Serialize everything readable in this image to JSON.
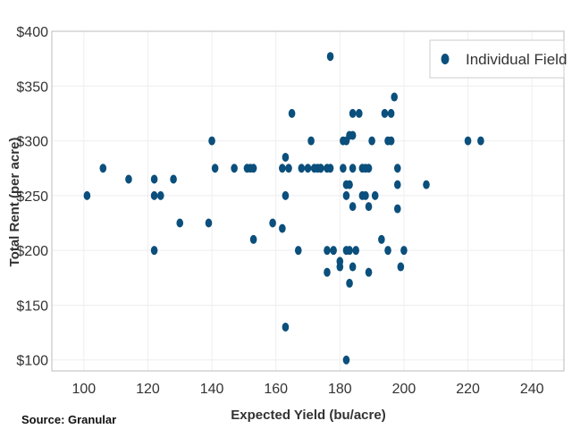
{
  "chart_data": {
    "type": "scatter",
    "title": "",
    "xlabel": "Expected Yield (bu/acre)",
    "ylabel": "Total Rent (per acre)",
    "xlim": [
      90,
      250
    ],
    "ylim": [
      90,
      400
    ],
    "x_ticks": [
      100,
      120,
      140,
      160,
      180,
      200,
      220,
      240
    ],
    "y_ticks": [
      100,
      150,
      200,
      250,
      300,
      350,
      400
    ],
    "y_tick_labels": [
      "$100",
      "$150",
      "$200",
      "$250",
      "$300",
      "$350",
      "$400"
    ],
    "x_tick_labels": [
      "100",
      "120",
      "140",
      "160",
      "180",
      "200",
      "220",
      "240"
    ],
    "grid": true,
    "legend_position": "top-right",
    "marker_color": "#0b4f7c",
    "series": [
      {
        "name": "Individual Field",
        "points": [
          [
            101,
            250
          ],
          [
            106,
            275
          ],
          [
            114,
            265
          ],
          [
            122,
            265
          ],
          [
            122,
            250
          ],
          [
            122,
            200
          ],
          [
            124,
            250
          ],
          [
            128,
            265
          ],
          [
            130,
            225
          ],
          [
            139,
            225
          ],
          [
            140,
            300
          ],
          [
            141,
            275
          ],
          [
            147,
            275
          ],
          [
            151,
            275
          ],
          [
            152,
            275
          ],
          [
            153,
            275
          ],
          [
            153,
            210
          ],
          [
            159,
            225
          ],
          [
            162,
            220
          ],
          [
            162,
            275
          ],
          [
            163,
            285
          ],
          [
            163,
            250
          ],
          [
            163,
            130
          ],
          [
            164,
            275
          ],
          [
            165,
            325
          ],
          [
            167,
            200
          ],
          [
            168,
            275
          ],
          [
            170,
            275
          ],
          [
            171,
            300
          ],
          [
            172,
            275
          ],
          [
            173,
            275
          ],
          [
            174,
            275
          ],
          [
            174,
            275
          ],
          [
            176,
            200
          ],
          [
            176,
            180
          ],
          [
            176,
            275
          ],
          [
            177,
            377
          ],
          [
            177,
            275
          ],
          [
            178,
            200
          ],
          [
            180,
            190
          ],
          [
            180,
            185
          ],
          [
            181,
            300
          ],
          [
            181,
            275
          ],
          [
            182,
            300
          ],
          [
            182,
            260
          ],
          [
            182,
            250
          ],
          [
            182,
            200
          ],
          [
            182,
            100
          ],
          [
            183,
            305
          ],
          [
            183,
            260
          ],
          [
            183,
            200
          ],
          [
            183,
            170
          ],
          [
            184,
            325
          ],
          [
            184,
            305
          ],
          [
            184,
            275
          ],
          [
            184,
            240
          ],
          [
            184,
            185
          ],
          [
            185,
            200
          ],
          [
            186,
            325
          ],
          [
            187,
            275
          ],
          [
            187,
            250
          ],
          [
            188,
            250
          ],
          [
            188,
            275
          ],
          [
            189,
            275
          ],
          [
            189,
            240
          ],
          [
            189,
            180
          ],
          [
            190,
            300
          ],
          [
            191,
            250
          ],
          [
            193,
            210
          ],
          [
            194,
            325
          ],
          [
            195,
            300
          ],
          [
            195,
            200
          ],
          [
            196,
            325
          ],
          [
            196,
            300
          ],
          [
            197,
            340
          ],
          [
            198,
            275
          ],
          [
            198,
            260
          ],
          [
            198,
            238
          ],
          [
            199,
            185
          ],
          [
            200,
            200
          ],
          [
            207,
            260
          ],
          [
            220,
            300
          ],
          [
            224,
            300
          ]
        ]
      }
    ],
    "source": "Source: Granular"
  }
}
